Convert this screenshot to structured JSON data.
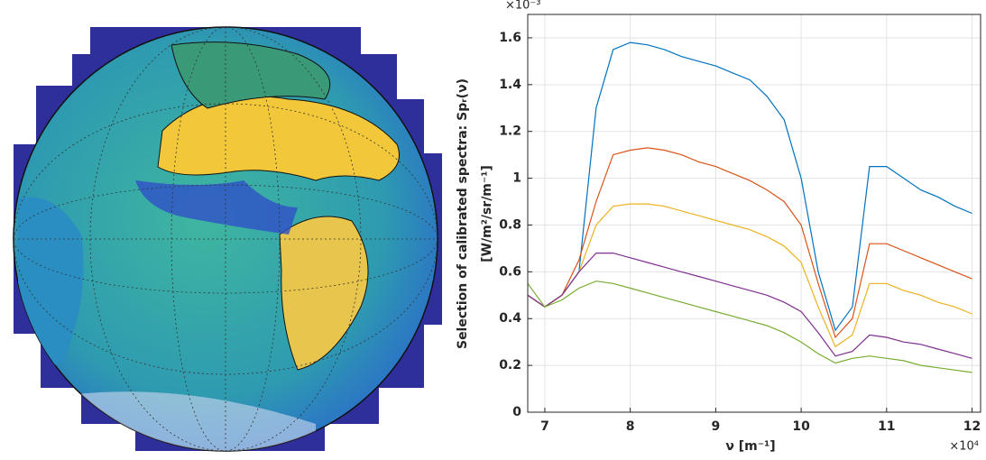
{
  "chart_data": {
    "type": "line",
    "y_label": [
      "Selection of calibrated spectra: Spᵣ(ν)",
      "[W/m²/sr/m⁻¹]"
    ],
    "x_label": "ν [m⁻¹]",
    "y_exponent": "×10⁻³",
    "x_exponent": "×10⁴",
    "x": [
      6.8,
      7.0,
      7.2,
      7.4,
      7.6,
      7.8,
      8.0,
      8.2,
      8.4,
      8.6,
      8.8,
      9.0,
      9.2,
      9.4,
      9.6,
      9.8,
      10.0,
      10.2,
      10.4,
      10.6,
      10.8,
      11.0,
      11.2,
      11.4,
      11.6,
      11.8,
      12.0
    ],
    "series": [
      {
        "color": "#0072bd",
        "values": [
          0.5,
          0.45,
          0.5,
          0.6,
          1.3,
          1.55,
          1.58,
          1.57,
          1.55,
          1.52,
          1.5,
          1.48,
          1.45,
          1.42,
          1.35,
          1.25,
          1.0,
          0.6,
          0.35,
          0.45,
          1.05,
          1.05,
          1.0,
          0.95,
          0.92,
          0.88,
          0.85
        ]
      },
      {
        "color": "#d95319",
        "values": [
          0.5,
          0.45,
          0.5,
          0.65,
          0.9,
          1.1,
          1.12,
          1.13,
          1.12,
          1.1,
          1.07,
          1.05,
          1.02,
          0.99,
          0.95,
          0.9,
          0.8,
          0.55,
          0.32,
          0.4,
          0.72,
          0.72,
          0.69,
          0.66,
          0.63,
          0.6,
          0.57
        ]
      },
      {
        "color": "#edb120",
        "values": [
          0.5,
          0.45,
          0.5,
          0.6,
          0.8,
          0.88,
          0.89,
          0.89,
          0.88,
          0.86,
          0.84,
          0.82,
          0.8,
          0.78,
          0.75,
          0.71,
          0.64,
          0.45,
          0.28,
          0.33,
          0.55,
          0.55,
          0.52,
          0.5,
          0.47,
          0.45,
          0.42
        ]
      },
      {
        "color": "#7e2f8e",
        "values": [
          0.5,
          0.45,
          0.5,
          0.6,
          0.68,
          0.68,
          0.66,
          0.64,
          0.62,
          0.6,
          0.58,
          0.56,
          0.54,
          0.52,
          0.5,
          0.47,
          0.43,
          0.34,
          0.24,
          0.26,
          0.33,
          0.32,
          0.3,
          0.29,
          0.27,
          0.25,
          0.23
        ]
      },
      {
        "color": "#77ac30",
        "values": [
          0.55,
          0.45,
          0.48,
          0.53,
          0.56,
          0.55,
          0.53,
          0.51,
          0.49,
          0.47,
          0.45,
          0.43,
          0.41,
          0.39,
          0.37,
          0.34,
          0.3,
          0.25,
          0.21,
          0.23,
          0.24,
          0.23,
          0.22,
          0.2,
          0.19,
          0.18,
          0.17
        ]
      }
    ],
    "xlim": [
      6.8,
      12.1
    ],
    "ylim": [
      0,
      1.7
    ],
    "xticks": [
      7,
      8,
      9,
      10,
      11,
      12
    ],
    "yticks": [
      0,
      0.2,
      0.4,
      0.6,
      0.8,
      1,
      1.2,
      1.4,
      1.6
    ],
    "grid": true
  }
}
